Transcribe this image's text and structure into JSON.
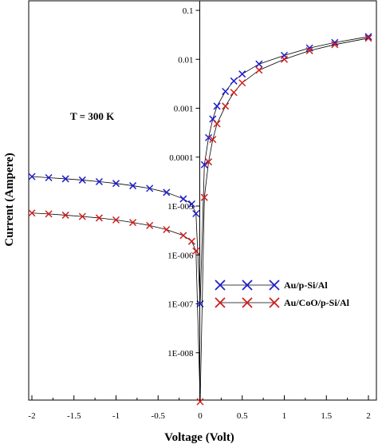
{
  "chart_data": {
    "type": "scatter",
    "title": "",
    "xlabel": "Voltage (Volt)",
    "ylabel": "Current (Ampere)",
    "xlim": [
      -2,
      2
    ],
    "ylim": [
      1e-09,
      0.1
    ],
    "yscale": "log",
    "x_ticks": [
      "-2",
      "-1.5",
      "-1",
      "-0.5",
      "0",
      "0.5",
      "1",
      "1.5",
      "2"
    ],
    "y_ticks": [
      "1E-008",
      "1E-007",
      "1E-006",
      "1E-005",
      "0.0001",
      "0.001",
      "0.01",
      "0.1"
    ],
    "annotation": "T = 300 K",
    "legend_position": "center-right",
    "grid": false,
    "series": [
      {
        "name": "Au/p-Si/Al",
        "color": "#1f1fd0",
        "marker": "x",
        "x": [
          -2.0,
          -1.8,
          -1.6,
          -1.4,
          -1.2,
          -1.0,
          -0.8,
          -0.6,
          -0.4,
          -0.2,
          -0.1,
          -0.05,
          0.0,
          0.05,
          0.1,
          0.15,
          0.2,
          0.3,
          0.4,
          0.5,
          0.7,
          1.0,
          1.3,
          1.6,
          2.0
        ],
        "y": [
          4e-05,
          3.8e-05,
          3.6e-05,
          3.4e-05,
          3.15e-05,
          2.9e-05,
          2.6e-05,
          2.3e-05,
          1.9e-05,
          1.4e-05,
          1.1e-05,
          7e-06,
          1e-07,
          7e-05,
          0.00025,
          0.0006,
          0.0011,
          0.0022,
          0.0036,
          0.005,
          0.008,
          0.012,
          0.017,
          0.022,
          0.029
        ]
      },
      {
        "name": "Au/CoO/p-Si/Al",
        "color": "#d01f1f",
        "marker": "x",
        "x": [
          -2.0,
          -1.8,
          -1.6,
          -1.4,
          -1.2,
          -1.0,
          -0.8,
          -0.6,
          -0.4,
          -0.2,
          -0.1,
          -0.05,
          0.0,
          0.05,
          0.1,
          0.15,
          0.2,
          0.3,
          0.4,
          0.5,
          0.7,
          1.0,
          1.3,
          1.6,
          2.0
        ],
        "y": [
          7.2e-06,
          6.9e-06,
          6.5e-06,
          6.1e-06,
          5.7e-06,
          5.2e-06,
          4.6e-06,
          4e-06,
          3.3e-06,
          2.5e-06,
          1.9e-06,
          1.2e-06,
          1e-09,
          1.5e-05,
          8e-05,
          0.00023,
          0.00048,
          0.0011,
          0.0021,
          0.0033,
          0.006,
          0.01,
          0.015,
          0.02,
          0.027
        ]
      }
    ]
  }
}
